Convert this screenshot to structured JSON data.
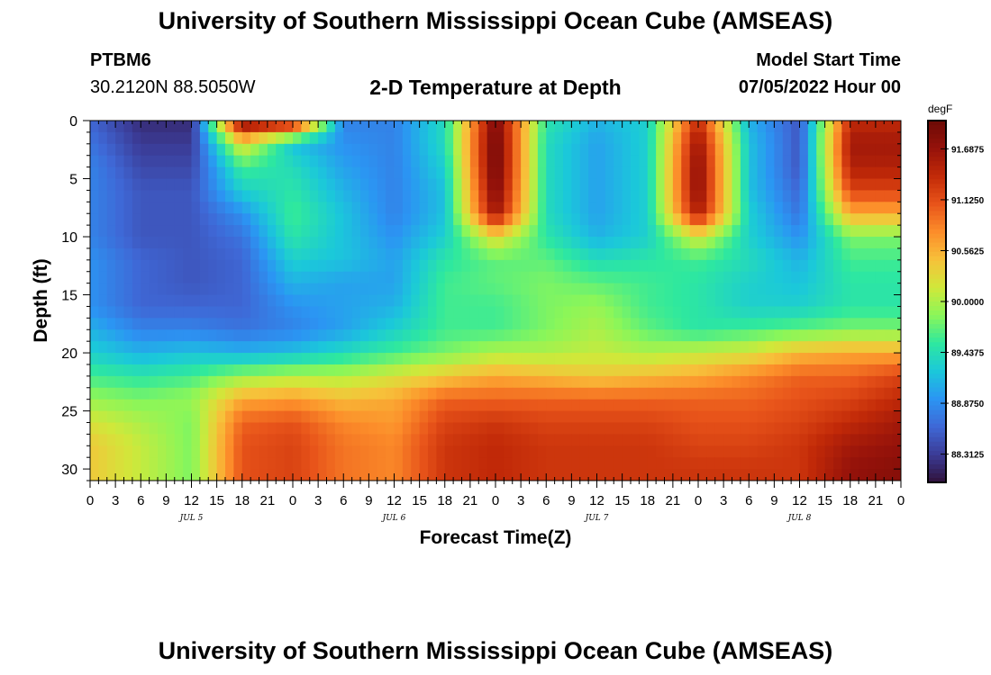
{
  "header": {
    "title": "University of Southern Mississippi Ocean Cube (AMSEAS)",
    "station_id": "PTBM6",
    "coordinates": "30.2120N  88.5050W",
    "subtitle": "2-D Temperature at Depth",
    "model_start_label": "Model Start Time",
    "model_start_value": "07/05/2022 Hour 00"
  },
  "footer": {
    "title_repeat": "University of Southern Mississippi Ocean Cube (AMSEAS)"
  },
  "colors": {
    "colormap": [
      "#30123b",
      "#3b3b96",
      "#3f68d6",
      "#2b95f3",
      "#1bc8da",
      "#2ee89f",
      "#8bf659",
      "#d0e83a",
      "#f7c13a",
      "#fc8d2a",
      "#e8541a",
      "#c22a08",
      "#95120a",
      "#6c0a06"
    ]
  },
  "chart_data": {
    "type": "heatmap",
    "title": "2-D Temperature at Depth",
    "xlabel": "Forecast Time(Z)",
    "ylabel": "Depth (ft)",
    "x_tick_labels": [
      "0",
      "3",
      "6",
      "9",
      "12",
      "15",
      "18",
      "21",
      "0",
      "3",
      "6",
      "9",
      "12",
      "15",
      "18",
      "21",
      "0",
      "3",
      "6",
      "9",
      "12",
      "15",
      "18",
      "21",
      "0",
      "3",
      "6",
      "9",
      "12",
      "15",
      "18",
      "21",
      "0"
    ],
    "x_range_hours": [
      0,
      96
    ],
    "date_labels": [
      {
        "label": "JUL 5",
        "hour": 12
      },
      {
        "label": "JUL 6",
        "hour": 36
      },
      {
        "label": "JUL 7",
        "hour": 60
      },
      {
        "label": "JUL 8",
        "hour": 84
      }
    ],
    "y_ticks": [
      0,
      5,
      10,
      15,
      20,
      25,
      30
    ],
    "y_range": [
      0,
      31
    ],
    "y_inverted": true,
    "colorbar": {
      "unit": "degF",
      "min": 88.0,
      "max": 92.0,
      "tick_values": [
        91.6875,
        91.125,
        90.5625,
        90.0,
        89.4375,
        88.875,
        88.3125
      ],
      "tick_labels": [
        "91.6875",
        "91.1250",
        "90.5625",
        "90.0000",
        "89.4375",
        "88.8750",
        "88.3125"
      ]
    },
    "depths_ft": [
      0,
      2,
      4,
      6,
      8,
      10,
      12,
      14,
      16,
      18,
      20,
      22,
      24,
      26,
      28,
      30
    ],
    "hours": [
      0,
      6,
      12,
      18,
      24,
      30,
      36,
      42,
      48,
      54,
      60,
      66,
      72,
      78,
      84,
      90,
      96
    ],
    "temperature_degF": [
      [
        88.6,
        88.2,
        88.2,
        91.9,
        91.7,
        88.8,
        88.8,
        89.4,
        91.9,
        89.5,
        89.1,
        89.3,
        91.4,
        89.1,
        88.5,
        91.4,
        91.4
      ],
      [
        88.7,
        88.3,
        88.3,
        90.3,
        89.2,
        88.9,
        88.8,
        89.4,
        92.0,
        89.4,
        89.0,
        89.3,
        91.7,
        89.2,
        88.5,
        91.6,
        91.6
      ],
      [
        88.8,
        88.4,
        88.4,
        89.6,
        89.4,
        89.0,
        88.8,
        89.3,
        92.0,
        89.4,
        89.0,
        89.3,
        91.8,
        89.2,
        88.5,
        91.5,
        91.5
      ],
      [
        88.8,
        88.5,
        88.5,
        89.3,
        89.5,
        89.1,
        88.8,
        89.2,
        91.9,
        89.4,
        89.0,
        89.3,
        91.8,
        89.2,
        88.6,
        91.2,
        91.2
      ],
      [
        88.8,
        88.5,
        88.5,
        88.9,
        89.6,
        89.2,
        88.8,
        89.2,
        91.7,
        89.4,
        89.0,
        89.3,
        91.6,
        89.3,
        88.7,
        90.6,
        90.6
      ],
      [
        88.8,
        88.5,
        88.5,
        88.7,
        89.5,
        89.2,
        88.9,
        89.3,
        90.3,
        89.5,
        89.1,
        89.3,
        90.2,
        89.3,
        88.9,
        89.8,
        89.8
      ],
      [
        88.9,
        88.6,
        88.5,
        88.6,
        89.3,
        89.2,
        89.0,
        89.5,
        89.7,
        89.7,
        89.4,
        89.5,
        89.6,
        89.4,
        89.1,
        89.6,
        89.6
      ],
      [
        88.9,
        88.6,
        88.5,
        88.6,
        89.1,
        89.0,
        89.0,
        89.6,
        89.7,
        89.8,
        89.7,
        89.6,
        89.5,
        89.3,
        89.2,
        89.5,
        89.5
      ],
      [
        88.9,
        88.6,
        88.6,
        88.6,
        88.9,
        89.0,
        89.1,
        89.6,
        89.6,
        89.8,
        89.9,
        89.6,
        89.5,
        89.3,
        89.3,
        89.5,
        89.5
      ],
      [
        89.1,
        88.8,
        88.8,
        88.7,
        88.8,
        89.0,
        89.3,
        89.6,
        89.6,
        89.8,
        90.0,
        89.7,
        89.5,
        89.6,
        89.7,
        89.8,
        89.8
      ],
      [
        89.3,
        89.1,
        89.2,
        89.1,
        89.2,
        89.4,
        89.6,
        89.8,
        90.0,
        90.0,
        90.1,
        90.0,
        90.1,
        90.2,
        90.5,
        90.6,
        90.6
      ],
      [
        89.6,
        89.5,
        89.6,
        89.9,
        90.0,
        90.0,
        90.2,
        90.4,
        90.6,
        90.5,
        90.4,
        90.5,
        90.6,
        90.8,
        91.0,
        91.0,
        91.2
      ],
      [
        89.9,
        89.8,
        89.9,
        90.6,
        90.7,
        90.5,
        90.6,
        91.0,
        91.0,
        91.0,
        91.0,
        91.0,
        91.0,
        91.0,
        91.1,
        91.2,
        91.4
      ],
      [
        90.2,
        90.0,
        89.8,
        91.0,
        91.1,
        90.8,
        90.7,
        91.2,
        91.3,
        91.2,
        91.2,
        91.2,
        91.1,
        91.1,
        91.2,
        91.4,
        91.6
      ],
      [
        90.4,
        90.1,
        89.8,
        91.1,
        91.2,
        90.9,
        90.8,
        91.3,
        91.4,
        91.3,
        91.3,
        91.3,
        91.2,
        91.2,
        91.3,
        91.6,
        91.7
      ],
      [
        90.4,
        90.1,
        89.8,
        91.1,
        91.2,
        90.9,
        90.8,
        91.3,
        91.4,
        91.3,
        91.3,
        91.3,
        91.3,
        91.3,
        91.3,
        91.7,
        91.8
      ]
    ]
  }
}
